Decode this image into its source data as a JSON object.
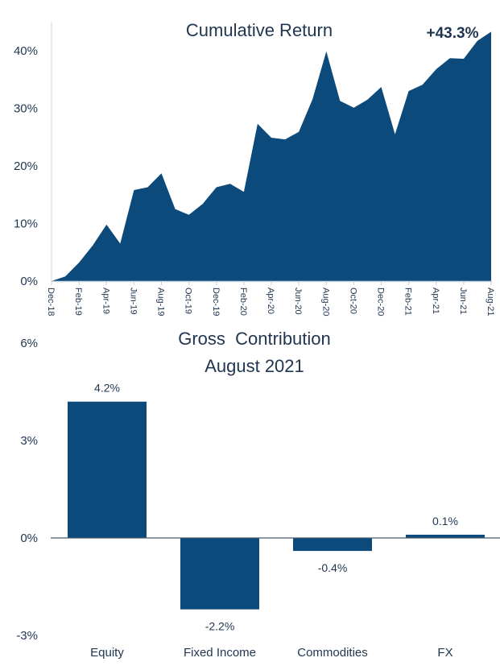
{
  "chart_data": [
    {
      "type": "area",
      "title": "Cumulative Return",
      "annotation": "+43.3%",
      "xlabel": "",
      "ylabel": "",
      "ylim": [
        0,
        45
      ],
      "yticks": [
        0,
        10,
        20,
        30,
        40
      ],
      "ytick_labels": [
        "0%",
        "10%",
        "20%",
        "30%",
        "40%"
      ],
      "grid": false,
      "x": [
        "Dec-18",
        "Jan-19",
        "Feb-19",
        "Mar-19",
        "Apr-19",
        "May-19",
        "Jun-19",
        "Jul-19",
        "Aug-19",
        "Sep-19",
        "Oct-19",
        "Nov-19",
        "Dec-19",
        "Jan-20",
        "Feb-20",
        "Mar-20",
        "Apr-20",
        "May-20",
        "Jun-20",
        "Jul-20",
        "Aug-20",
        "Sep-20",
        "Oct-20",
        "Nov-20",
        "Dec-20",
        "Jan-21",
        "Feb-21",
        "Mar-21",
        "Apr-21",
        "May-21",
        "Jun-21",
        "Jul-21",
        "Aug-21"
      ],
      "xtick_labels": [
        "Dec-18",
        "Feb-19",
        "Apr-19",
        "Jun-19",
        "Aug-19",
        "Oct-19",
        "Dec-19",
        "Feb-20",
        "Apr-20",
        "Jun-20",
        "Aug-20",
        "Oct-20",
        "Dec-20",
        "Feb-21",
        "Apr-21",
        "Jun-21",
        "Aug-21"
      ],
      "values": [
        0,
        0.8,
        3.2,
        6.2,
        9.8,
        6.5,
        15.8,
        16.3,
        18.7,
        12.5,
        11.5,
        13.4,
        16.3,
        16.9,
        15.5,
        27.3,
        24.9,
        24.6,
        25.9,
        31.6,
        39.9,
        31.3,
        30.1,
        31.5,
        33.7,
        25.5,
        33.0,
        34.1,
        36.8,
        38.7,
        38.6,
        41.7,
        43.3
      ],
      "color": "#0b4a7a"
    },
    {
      "type": "bar",
      "title": "Gross  Contribution",
      "subtitle": "August 2021",
      "categories": [
        "Equity",
        "Fixed Income",
        "Commodities",
        "FX"
      ],
      "values": [
        4.2,
        -2.2,
        -0.4,
        0.1
      ],
      "data_labels": [
        "4.2%",
        "-2.2%",
        "-0.4%",
        "0.1%"
      ],
      "ylim": [
        -3,
        6
      ],
      "yticks": [
        -3,
        0,
        3,
        6
      ],
      "ytick_labels": [
        "-3%",
        "0%",
        "3%",
        "6%"
      ],
      "grid": false,
      "color": "#0b4a7a"
    }
  ]
}
